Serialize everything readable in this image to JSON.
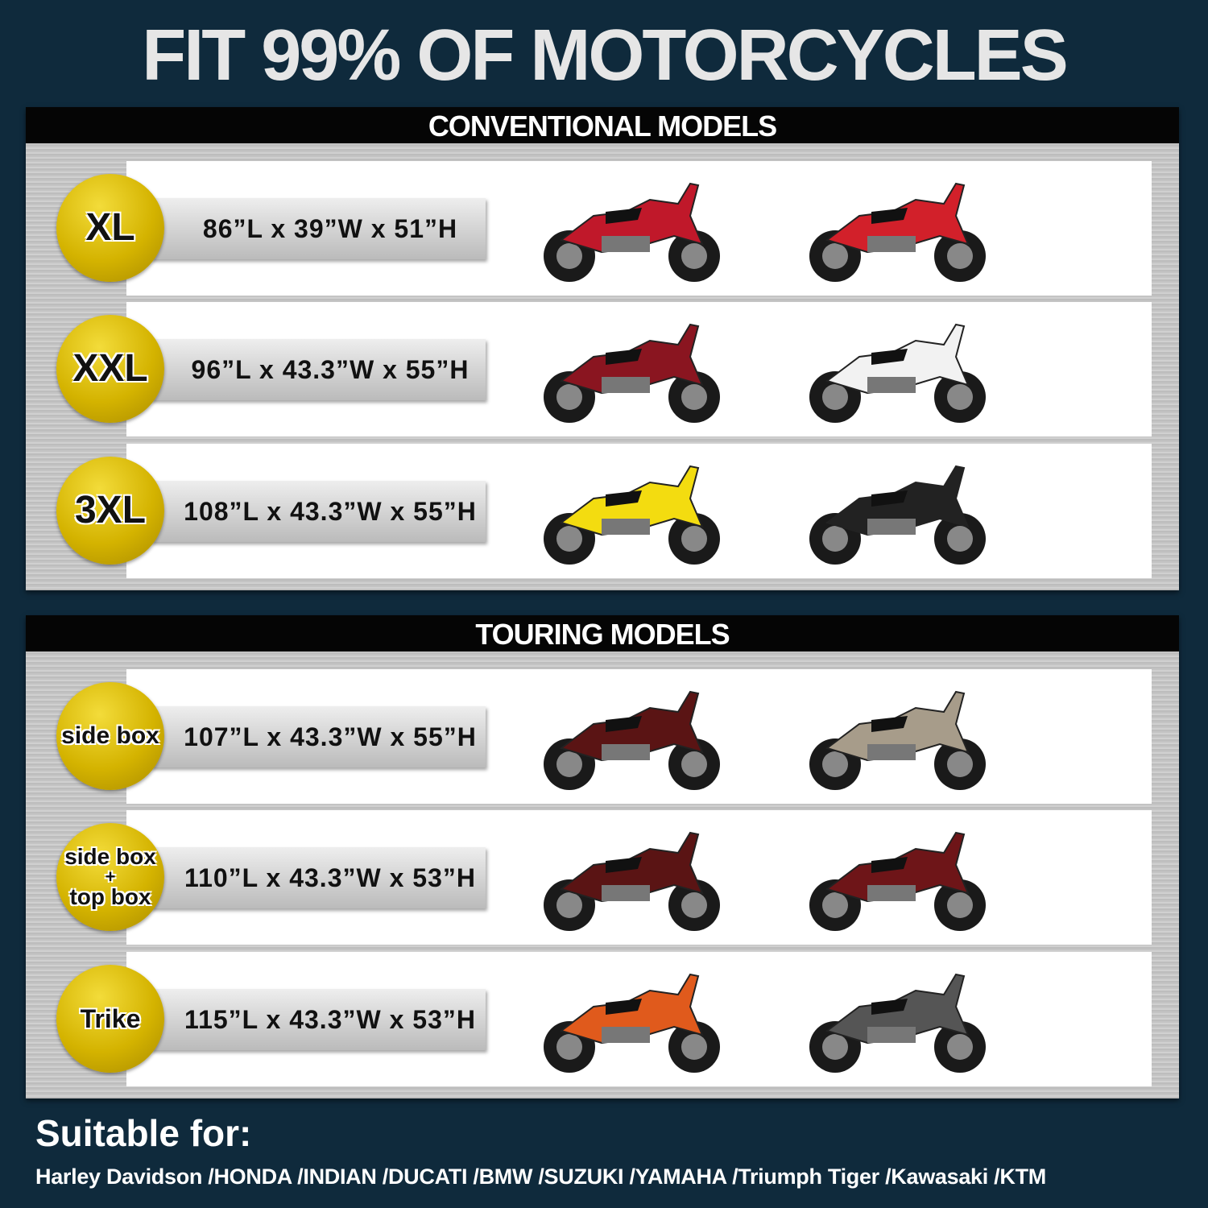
{
  "title": "FIT 99% OF MOTORCYCLES",
  "sections": [
    {
      "heading": "CONVENTIONAL MODELS",
      "rows": [
        {
          "size": "XL",
          "dims": "86”L x 39”W x 51”H",
          "bikes": [
            "#c0182a",
            "#d2202a"
          ]
        },
        {
          "size": "XXL",
          "dims": "96”L x 43.3”W x 55”H",
          "bikes": [
            "#8a1520",
            "#f2f2f2"
          ]
        },
        {
          "size": "3XL",
          "dims": "108”L x 43.3”W x 55”H",
          "bikes": [
            "#f3dc10",
            "#222222"
          ]
        }
      ]
    },
    {
      "heading": "TOURING MODELS",
      "rows": [
        {
          "size": "side box",
          "dims": "107”L x 43.3”W x 55”H",
          "bikes": [
            "#5a1414",
            "#a79c8a"
          ]
        },
        {
          "size": "side box",
          "size2": "top box",
          "plus": "+",
          "dims": "110”L x 43.3”W x 53”H",
          "bikes": [
            "#5a1414",
            "#6e1518"
          ]
        },
        {
          "size": "Trike",
          "dims": "115”L x 43.3”W x 53”H",
          "bikes": [
            "#e05a1c",
            "#555555"
          ]
        }
      ]
    }
  ],
  "footer": {
    "heading": "Suitable for:",
    "brands": "Harley Davidson /HONDA /INDIAN /DUCATI /BMW /SUZUKI /YAMAHA /Triumph Tiger /Kawasaki /KTM"
  },
  "colors": {
    "background": "#0f2a3c",
    "badge": "#d4b300",
    "header": "#050505"
  }
}
